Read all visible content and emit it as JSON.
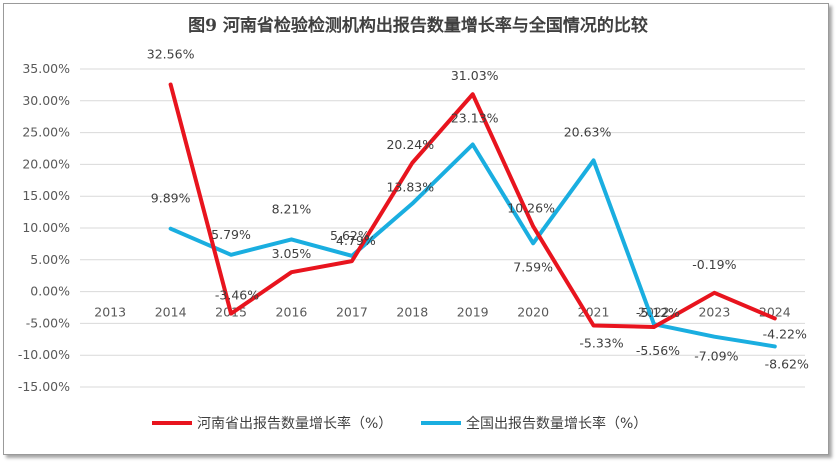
{
  "chart_data": {
    "type": "line",
    "title": "图9  河南省检验检测机构出报告数量增长率与全国情况的比较",
    "categories": [
      "2013",
      "2014",
      "2015",
      "2016",
      "2017",
      "2018",
      "2019",
      "2020",
      "2021",
      "2022",
      "2023",
      "2024"
    ],
    "y_ticks": [
      "35.00%",
      "30.00%",
      "25.00%",
      "20.00%",
      "15.00%",
      "10.00%",
      "5.00%",
      "0.00%",
      "-5.00%",
      "-10.00%",
      "-15.00%"
    ],
    "ylim": [
      -15,
      35
    ],
    "grid": true,
    "legend_position": "bottom",
    "series": [
      {
        "name": "河南省出报告数量增长率（%）",
        "color": "#e8141e",
        "values": [
          null,
          32.56,
          -3.46,
          3.05,
          4.79,
          20.24,
          31.03,
          10.26,
          -5.33,
          -5.56,
          -0.19,
          -4.22
        ],
        "labels": [
          "",
          "32.56%",
          "-3.46%",
          "3.05%",
          "4.79%",
          "20.24%",
          "31.03%",
          "10.26%",
          "-5.33%",
          "-5.56%",
          "-0.19%",
          "-4.22%"
        ]
      },
      {
        "name": "全国出报告数量增长率（%）",
        "color": "#1aaee0",
        "values": [
          null,
          9.89,
          5.79,
          8.21,
          5.62,
          13.83,
          23.13,
          7.59,
          20.63,
          -5.12,
          -7.09,
          -8.62
        ],
        "labels": [
          "",
          "9.89%",
          "5.79%",
          "8.21%",
          "5.62%",
          "13.83%",
          "23.13%",
          "7.59%",
          "20.63%",
          "-5.12%",
          "-7.09%",
          "-8.62%"
        ]
      }
    ]
  }
}
